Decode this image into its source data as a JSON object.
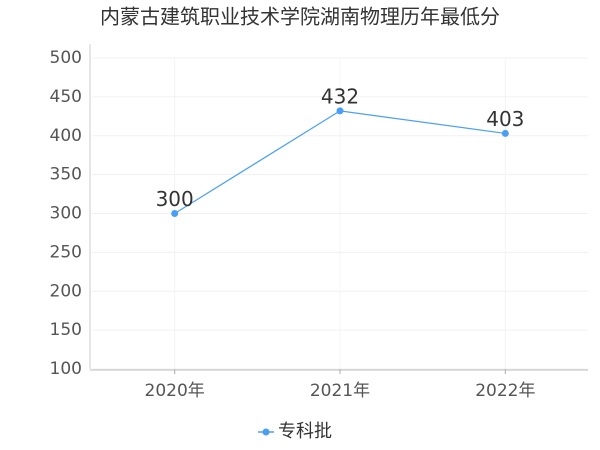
{
  "chart_data": {
    "type": "line",
    "title": "内蒙古建筑职业技术学院湖南物理历年最低分",
    "categories": [
      "2020年",
      "2021年",
      "2022年"
    ],
    "series": [
      {
        "name": "专科批",
        "color": "#4a9ff5",
        "values": [
          300,
          432,
          403
        ]
      }
    ],
    "ylim": [
      100,
      500
    ],
    "yticks": [
      100,
      150,
      200,
      250,
      300,
      350,
      400,
      450,
      500
    ],
    "grid": true,
    "legend": "bottom"
  }
}
